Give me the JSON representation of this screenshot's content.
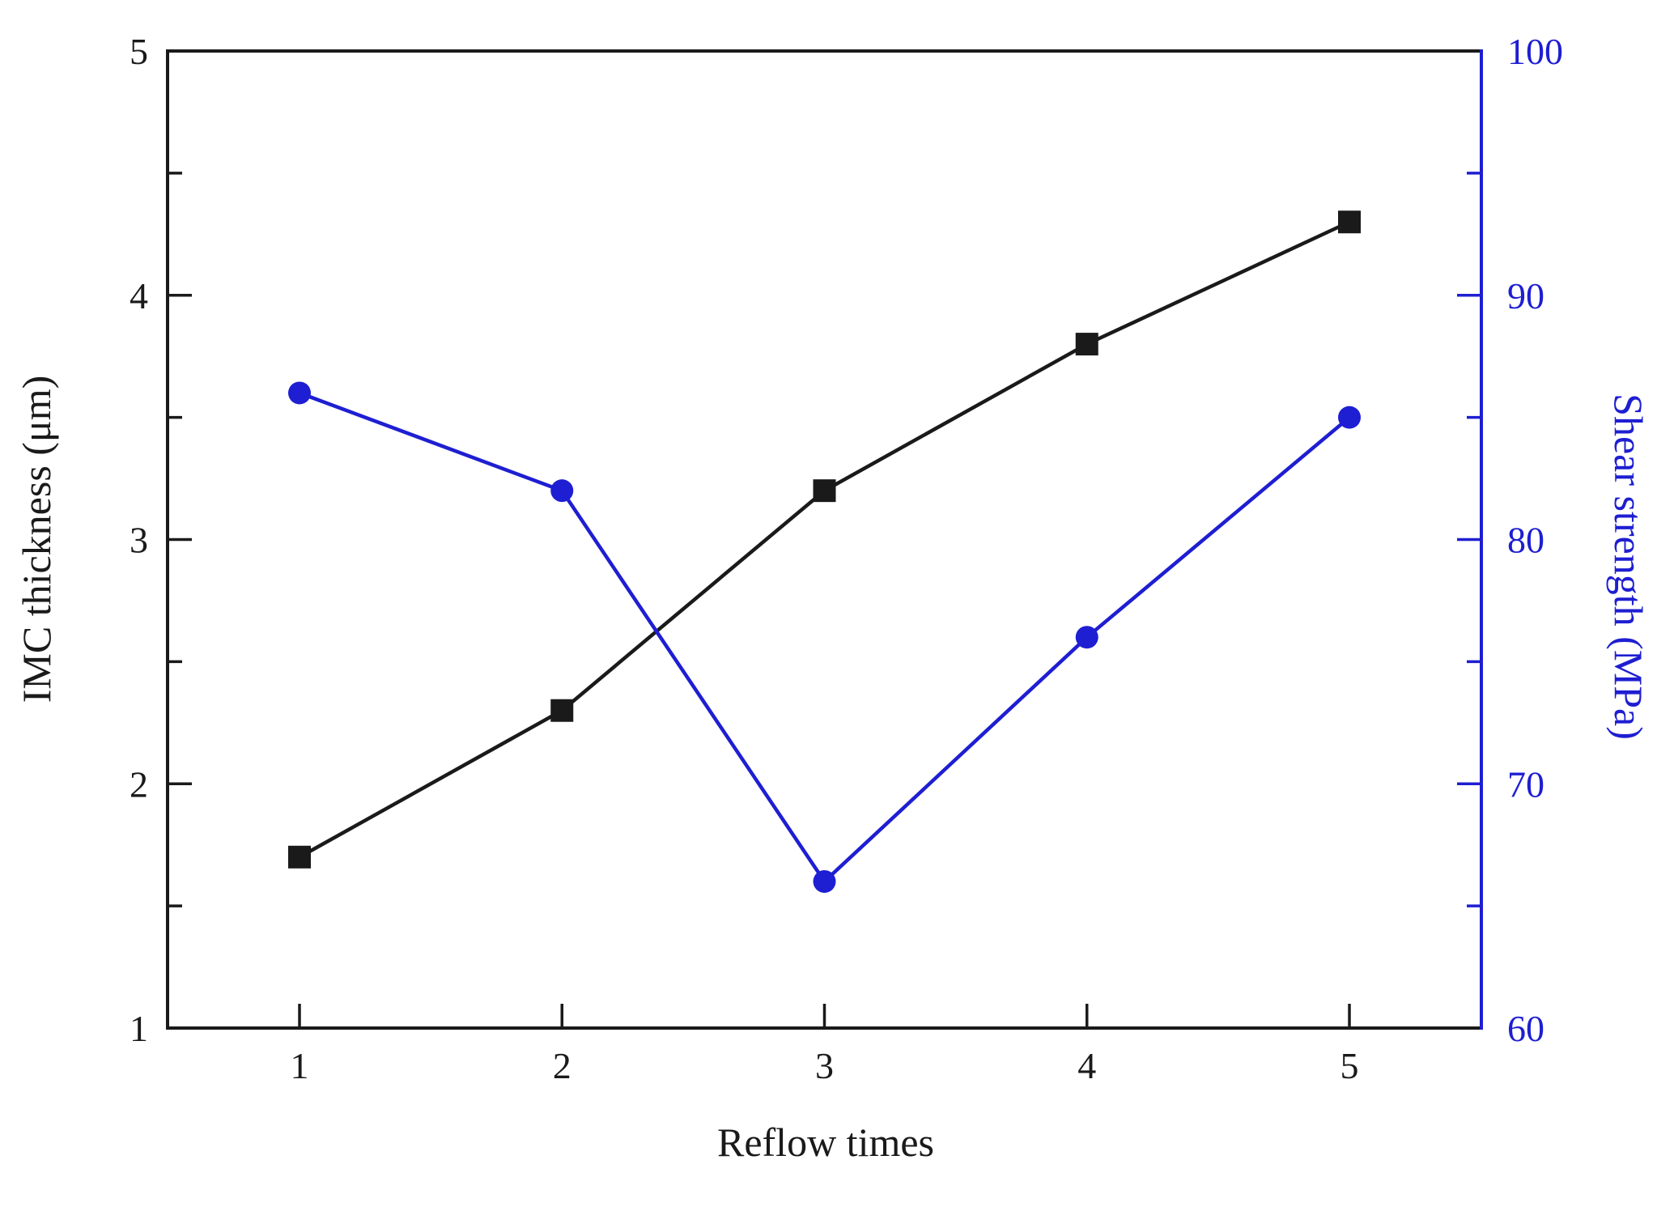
{
  "chart_data": {
    "type": "line",
    "title": "",
    "xlabel": "Reflow times",
    "x": [
      1,
      2,
      3,
      4,
      5
    ],
    "x_ticks": [
      1,
      2,
      3,
      4,
      5
    ],
    "series": [
      {
        "name": "IMC thickness",
        "axis": "left",
        "marker": "square",
        "color": "#1a1a1a",
        "values": [
          1.7,
          2.3,
          3.2,
          3.8,
          4.3
        ]
      },
      {
        "name": "Shear strength",
        "axis": "right",
        "marker": "circle",
        "color": "#1e1ed2",
        "values": [
          86,
          82,
          66,
          76,
          85
        ]
      }
    ],
    "left_axis": {
      "label": "IMC thickness (μm)",
      "range": [
        1,
        5
      ],
      "major_ticks": [
        1,
        2,
        3,
        4,
        5
      ],
      "minor_ticks": [
        1.5,
        2.5,
        3.5,
        4.5
      ],
      "color": "#1a1a1a"
    },
    "right_axis": {
      "label": "Shear strength (MPa)",
      "range": [
        60,
        100
      ],
      "major_ticks": [
        60,
        70,
        80,
        90,
        100
      ],
      "minor_ticks": [
        65,
        75,
        85,
        95
      ],
      "color": "#1e1ed2"
    },
    "grid": false,
    "legend": "none"
  }
}
